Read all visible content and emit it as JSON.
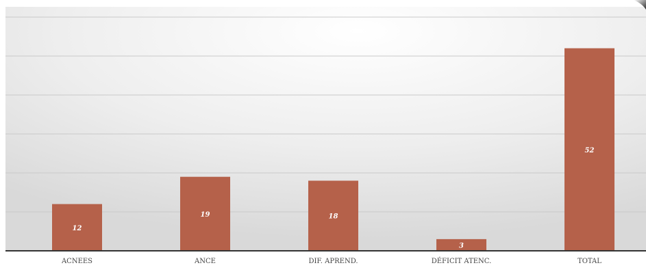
{
  "chart_data": {
    "type": "bar",
    "categories": [
      "ACNEES",
      "ANCE",
      "DIF. APREND.",
      "DÉFICIT ATENC.",
      "TOTAL"
    ],
    "values": [
      12,
      19,
      18,
      3,
      52
    ],
    "data_labels": [
      "12",
      "19",
      "18",
      "3",
      "52"
    ],
    "ylim": [
      0,
      60
    ],
    "grid": true,
    "legend": "none",
    "colors": {
      "bar": "#b5614a",
      "gridline": "#c9c9c9",
      "axis": "#333333",
      "data_label": "#ffffff",
      "tick_label": "#444444",
      "background_center": "#ffffff",
      "background_edge": "#dedede"
    }
  }
}
